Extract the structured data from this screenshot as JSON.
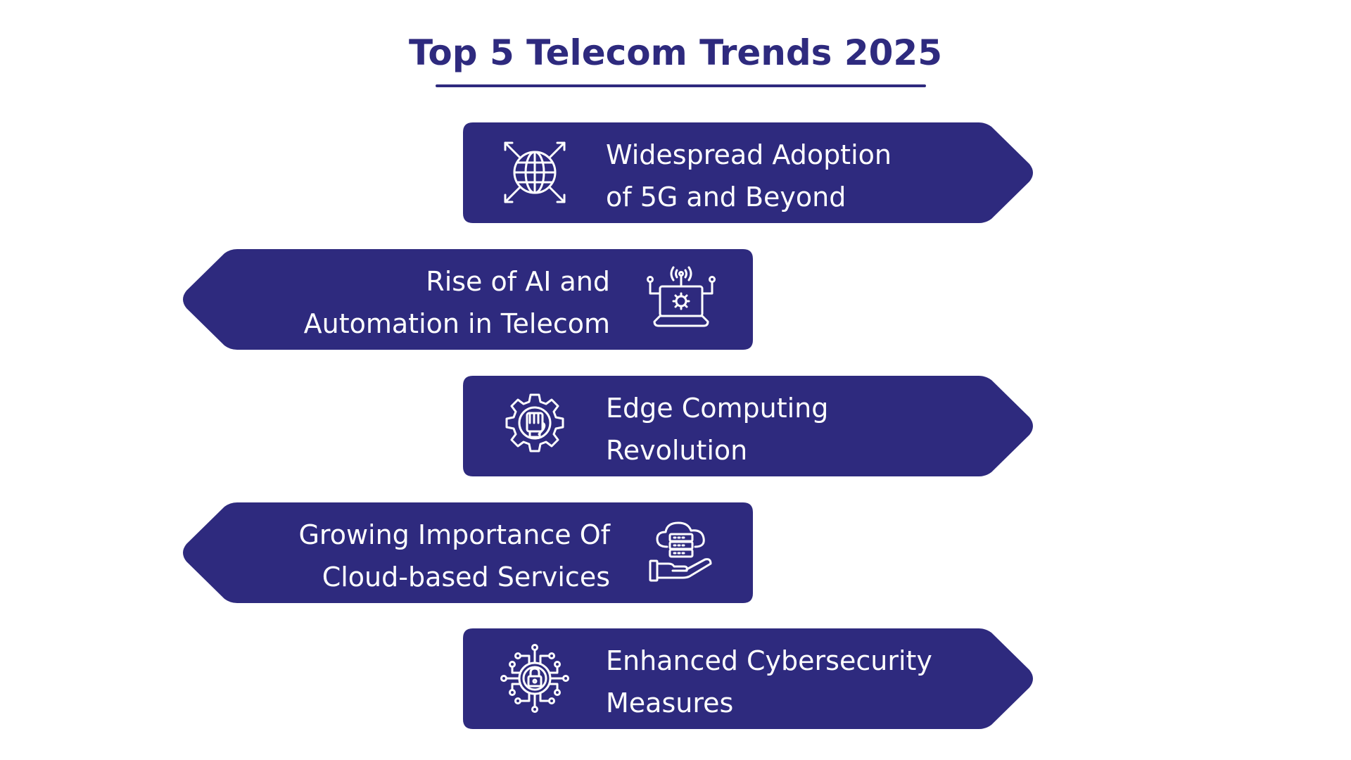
{
  "title": "Top 5 Telecom Trends 2025",
  "colors": {
    "card_fill": "#2e2a7e",
    "title": "#2e2a7e",
    "text": "#ffffff"
  },
  "trends": [
    {
      "line1": "Widespread Adoption",
      "line2": "of 5G and Beyond",
      "icon": "globe-arrows-icon",
      "pointer": "right"
    },
    {
      "line1": "Rise of AI and",
      "line2": "Automation in Telecom",
      "icon": "laptop-gear-signal-icon",
      "pointer": "left"
    },
    {
      "line1": "Edge Computing",
      "line2": "Revolution",
      "icon": "gear-chip-hand-icon",
      "pointer": "right"
    },
    {
      "line1": "Growing Importance Of",
      "line2": "Cloud-based Services",
      "icon": "cloud-server-hand-icon",
      "pointer": "left"
    },
    {
      "line1": "Enhanced Cybersecurity",
      "line2": "Measures",
      "icon": "circuit-lock-icon",
      "pointer": "right"
    }
  ]
}
